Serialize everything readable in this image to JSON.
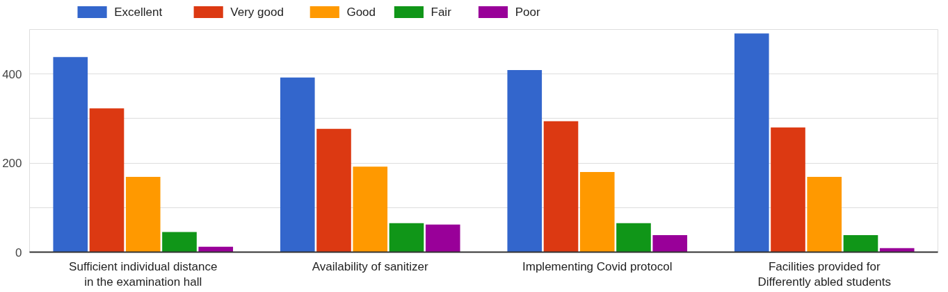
{
  "chart_data": {
    "type": "bar",
    "categories": [
      "Sufficient individual distance in the examination hall",
      "Availability of sanitizer",
      "Implementing Covid protocol",
      "Facilities provided for Differently abled students"
    ],
    "series": [
      {
        "name": "Excellent",
        "color": "#3366cc",
        "values": [
          438,
          392,
          409,
          491
        ]
      },
      {
        "name": "Very good",
        "color": "#dc3912",
        "values": [
          323,
          277,
          294,
          280
        ]
      },
      {
        "name": "Good",
        "color": "#ff9900",
        "values": [
          169,
          192,
          180,
          169
        ]
      },
      {
        "name": "Fair",
        "color": "#109618",
        "values": [
          45,
          65,
          65,
          38
        ]
      },
      {
        "name": "Poor",
        "color": "#990099",
        "values": [
          12,
          62,
          38,
          9
        ]
      }
    ],
    "ylim": [
      0,
      500
    ],
    "yticks": [
      0,
      {
        "value": 100,
        "label": null
      },
      200,
      {
        "value": 300,
        "label": null
      },
      400
    ],
    "grid": "y",
    "legend": "top left"
  }
}
